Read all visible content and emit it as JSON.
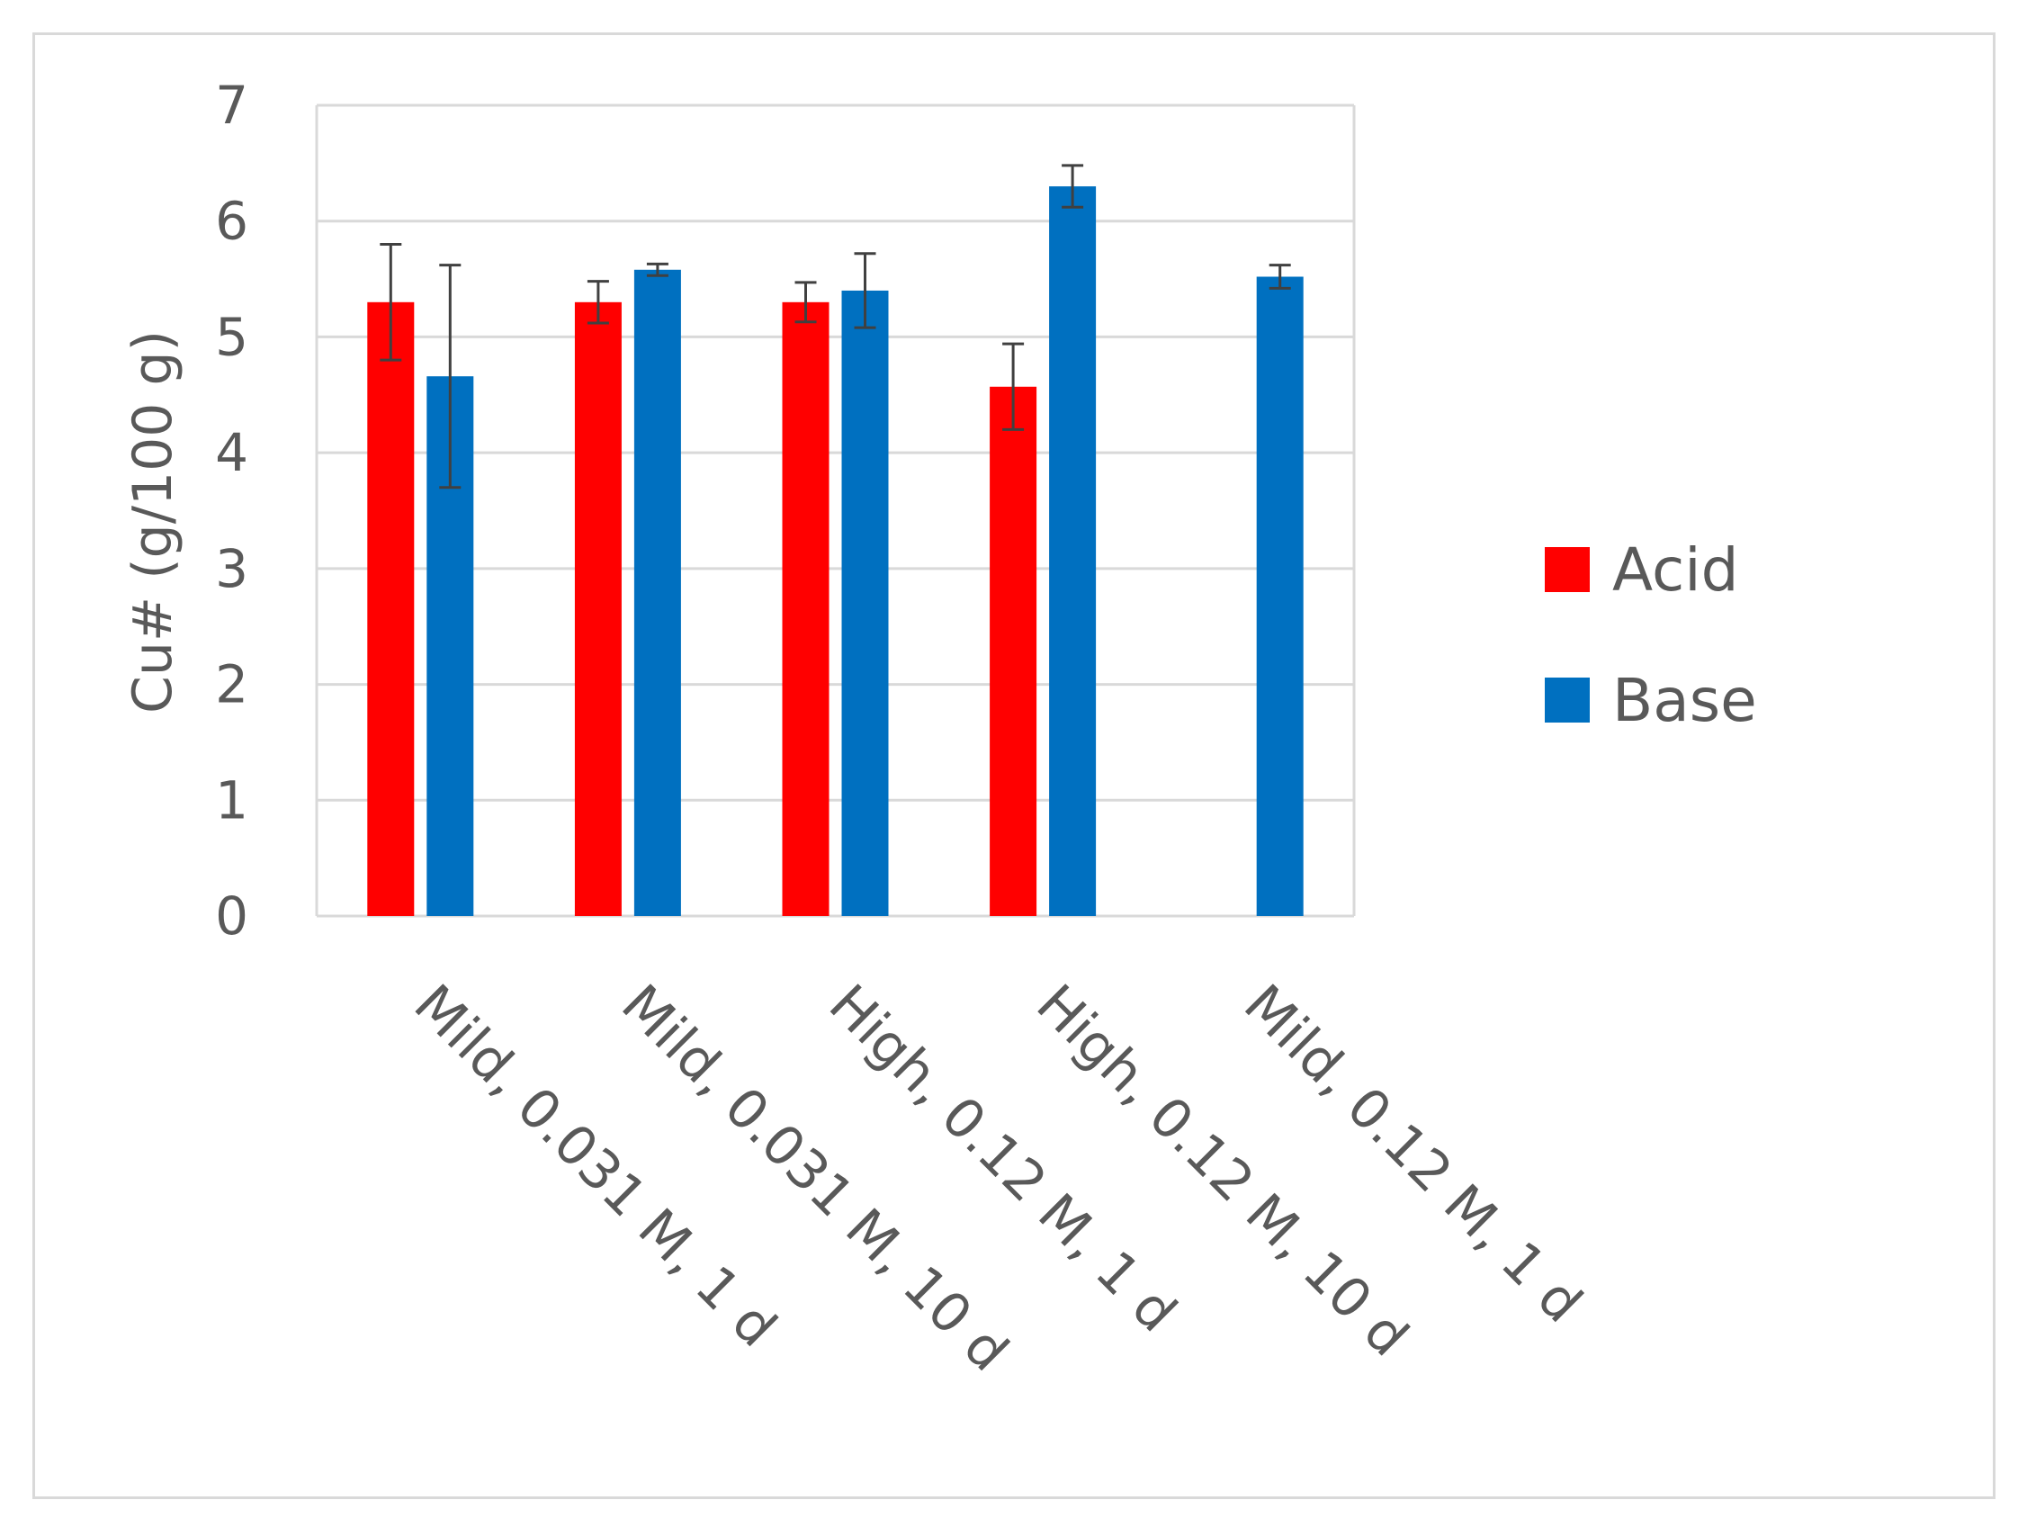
{
  "chart_data": {
    "type": "bar",
    "ylabel": "Cu# (g/100 g)",
    "xlabel": "",
    "ylim": [
      0,
      7
    ],
    "yticks": [
      0,
      1,
      2,
      3,
      4,
      5,
      6,
      7
    ],
    "grid": true,
    "legend_position": "right",
    "categories": [
      "Mild, 0.031 M, 1 d",
      "Mild, 0.031 M, 10 d",
      "High, 0.12 M, 1 d",
      "High, 0.12 M, 10 d",
      "Mild, 0.12 M, 1 d"
    ],
    "series": [
      {
        "name": "Acid",
        "color": "#ff0000",
        "values": [
          5.3,
          5.3,
          5.3,
          4.57,
          null
        ],
        "error": [
          0.5,
          0.18,
          0.17,
          0.37,
          null
        ]
      },
      {
        "name": "Base",
        "color": "#0070c0",
        "values": [
          4.66,
          5.58,
          5.4,
          6.3,
          5.52
        ],
        "error": [
          0.96,
          0.05,
          0.32,
          0.18,
          0.1
        ]
      }
    ]
  }
}
